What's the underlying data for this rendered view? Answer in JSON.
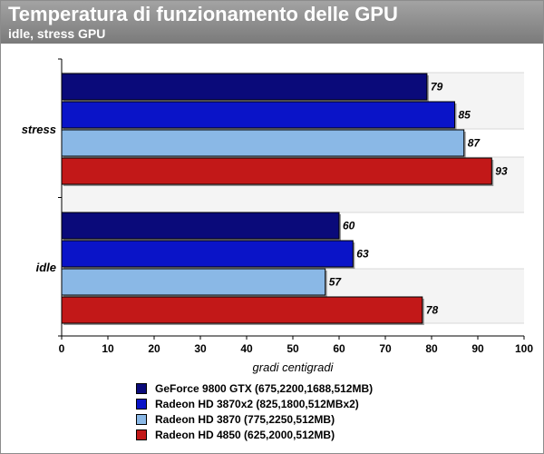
{
  "header": {
    "title": "Temperatura di funzionamento delle GPU",
    "subtitle": "idle, stress GPU"
  },
  "chart_data": {
    "type": "bar",
    "orientation": "horizontal",
    "title": "Temperatura di funzionamento delle GPU",
    "subtitle": "idle, stress GPU",
    "xlabel": "gradi centigradi",
    "ylabel": "",
    "xlim": [
      0,
      100
    ],
    "x_ticks": [
      0,
      10,
      20,
      30,
      40,
      50,
      60,
      70,
      80,
      90,
      100
    ],
    "categories": [
      "stress",
      "idle"
    ],
    "series": [
      {
        "name": "GeForce 9800 GTX (675,2200,1688,512MB)",
        "color": "#0a0a7a",
        "values": [
          79,
          60
        ]
      },
      {
        "name": "Radeon HD 3870x2 (825,1800,512MBx2)",
        "color": "#0a14c8",
        "values": [
          85,
          63
        ]
      },
      {
        "name": "Radeon HD 3870 (775,2250,512MB)",
        "color": "#8ab8e6",
        "values": [
          87,
          57
        ]
      },
      {
        "name": "Radeon HD 4850 (625,2000,512MB)",
        "color": "#c21818",
        "values": [
          93,
          78
        ]
      }
    ],
    "legend_position": "bottom",
    "grid": true
  }
}
